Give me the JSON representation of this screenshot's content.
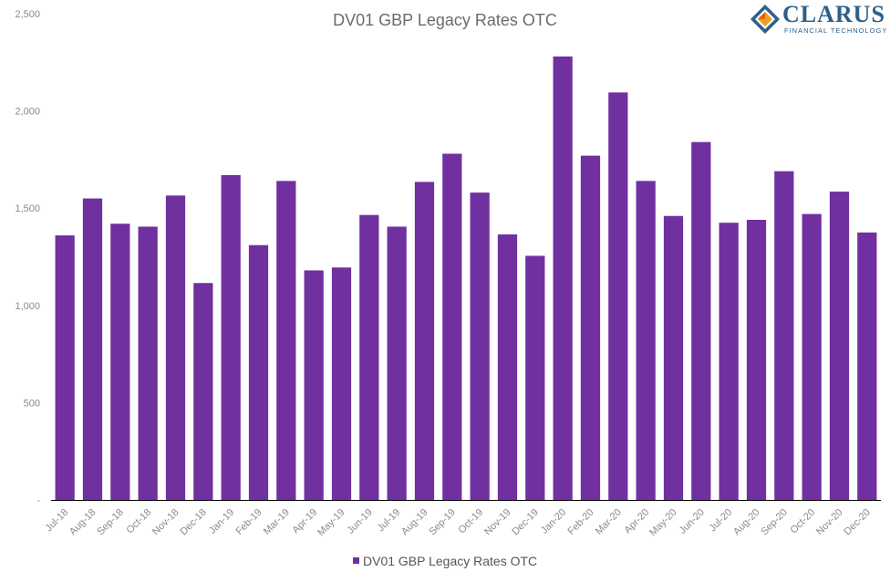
{
  "logo": {
    "word": "CLARUS",
    "sub": "FINANCIAL TECHNOLOGY"
  },
  "colors": {
    "bar": "#7030a0",
    "axis": "#000000",
    "text": "#8a8a8a"
  },
  "chart_data": {
    "type": "bar",
    "title": "DV01 GBP Legacy Rates OTC",
    "xlabel": "",
    "ylabel": "",
    "ylim": [
      0,
      2500
    ],
    "yticks": [
      {
        "value": 0,
        "label": "-"
      },
      {
        "value": 500,
        "label": "500"
      },
      {
        "value": 1000,
        "label": "1,000"
      },
      {
        "value": 1500,
        "label": "1,500"
      },
      {
        "value": 2000,
        "label": "2,000"
      },
      {
        "value": 2500,
        "label": "2,500"
      }
    ],
    "grid": false,
    "legend": "bottom",
    "categories": [
      "Jul-18",
      "Aug-18",
      "Sep-18",
      "Oct-18",
      "Nov-18",
      "Dec-18",
      "Jan-19",
      "Feb-19",
      "Mar-19",
      "Apr-19",
      "May-19",
      "Jun-19",
      "Jul-19",
      "Aug-19",
      "Sep-19",
      "Oct-19",
      "Nov-19",
      "Dec-19",
      "Jan-20",
      "Feb-20",
      "Mar-20",
      "Apr-20",
      "May-20",
      "Jun-20",
      "Jul-20",
      "Aug-20",
      "Sep-20",
      "Oct-20",
      "Nov-20",
      "Dec-20"
    ],
    "series": [
      {
        "name": "DV01 GBP Legacy Rates OTC",
        "values": [
          1360,
          1550,
          1420,
          1405,
          1565,
          1115,
          1670,
          1310,
          1640,
          1180,
          1195,
          1465,
          1405,
          1635,
          1780,
          1580,
          1365,
          1255,
          2280,
          1770,
          2095,
          1640,
          1460,
          1840,
          1425,
          1440,
          1690,
          1470,
          1585,
          1375
        ]
      }
    ]
  }
}
